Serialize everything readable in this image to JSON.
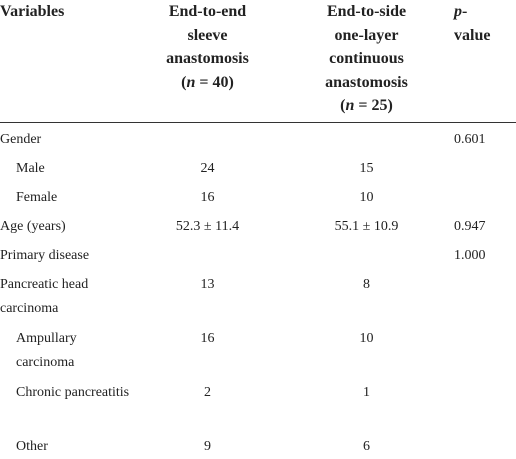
{
  "header": [
    [
      "Variables"
    ],
    [
      "End-to-end",
      "sleeve",
      "anastomosis",
      "(",
      "n",
      " = 40)"
    ],
    [
      "End-to-side",
      "one-layer",
      "continuous",
      "anastomosis",
      "(",
      "n",
      " = 25)"
    ],
    [
      "p",
      "-",
      "value"
    ]
  ],
  "rows": [
    {
      "label": "Gender",
      "p": "0.601"
    },
    {
      "label": "Male",
      "a": "24",
      "b": "15"
    },
    {
      "label": "Female",
      "a": "16",
      "b": "10"
    },
    {
      "label": "Age (years)",
      "a": "52.3 ± 11.4",
      "b": "55.1 ± 10.9",
      "p": "0.947"
    },
    {
      "label": "Primary disease",
      "p": "1.000"
    },
    {
      "label": "Pancreatic head carcinoma",
      "a": "13",
      "b": "8"
    },
    {
      "label": "Ampullary carcinoma",
      "a": "16",
      "b": "10"
    },
    {
      "label": "Chronic pancreatitis",
      "a": "2",
      "b": "1"
    },
    {
      "label": "Other",
      "a": "9",
      "b": "6"
    }
  ]
}
